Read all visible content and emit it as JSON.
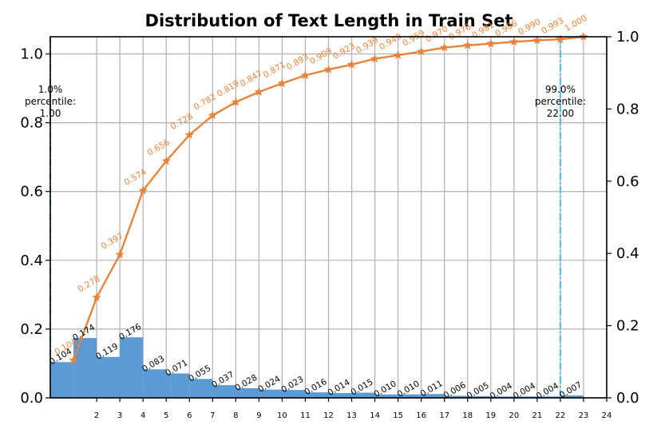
{
  "chart_data": {
    "type": "bar",
    "title": "Distribution of Text Length in Train Set",
    "xlabel": "",
    "ylabel": "",
    "y2label": "",
    "x_ticks": [
      2,
      3,
      4,
      5,
      6,
      7,
      8,
      9,
      10,
      11,
      12,
      13,
      14,
      15,
      16,
      17,
      18,
      19,
      20,
      21,
      22,
      23,
      24
    ],
    "xlim": [
      0,
      24
    ],
    "ylim": [
      0,
      1.05
    ],
    "y_ticks": [
      0.0,
      0.2,
      0.4,
      0.6,
      0.8,
      1.0
    ],
    "y_tick_labels": [
      "0.0",
      "0.2",
      "0.4",
      "0.6",
      "0.8",
      "1.0"
    ],
    "y2lim": [
      0,
      1.0
    ],
    "y2_ticks": [
      0.0,
      0.2,
      0.4,
      0.6,
      0.8,
      1.0
    ],
    "y2_tick_labels": [
      "0.0",
      "0.2",
      "0.4",
      "0.6",
      "0.8",
      "1.0"
    ],
    "grid": true,
    "bars": {
      "color": "#5b9bd5",
      "values": [
        0.104,
        0.174,
        0.119,
        0.176,
        0.083,
        0.071,
        0.055,
        0.037,
        0.028,
        0.024,
        0.023,
        0.016,
        0.014,
        0.015,
        0.01,
        0.01,
        0.011,
        0.006,
        0.005,
        0.004,
        0.004,
        0.004,
        0.007
      ],
      "labels": [
        "0.104",
        "0.174",
        "0.119",
        "0.176",
        "0.083",
        "0.071",
        "0.055",
        "0.037",
        "0.028",
        "0.024",
        "0.023",
        "0.016",
        "0.014",
        "0.015",
        "0.010",
        "0.010",
        "0.011",
        "0.006",
        "0.005",
        "0.004",
        "0.004",
        "0.004",
        "0.007"
      ]
    },
    "cumulative": {
      "color": "#e8833a",
      "marker": "star",
      "x": [
        1,
        2,
        3,
        4,
        5,
        6,
        7,
        8,
        9,
        10,
        11,
        12,
        13,
        14,
        15,
        16,
        17,
        18,
        19,
        20,
        21,
        22,
        23
      ],
      "values": [
        0.104,
        0.278,
        0.397,
        0.574,
        0.656,
        0.728,
        0.782,
        0.819,
        0.847,
        0.871,
        0.893,
        0.909,
        0.923,
        0.939,
        0.949,
        0.959,
        0.97,
        0.976,
        0.981,
        0.986,
        0.99,
        0.993,
        1.0
      ],
      "labels": [
        "0.104",
        "0.278",
        "0.397",
        "0.574",
        "0.656",
        "0.728",
        "0.782",
        "0.819",
        "0.847",
        "0.871",
        "0.893",
        "0.909",
        "0.923",
        "0.939",
        "0.949",
        "0.959",
        "0.970",
        "0.976",
        "0.981",
        "0.986",
        "0.990",
        "0.993",
        "1.000"
      ]
    },
    "percentile_lines": [
      {
        "x": 0,
        "color": "#4fc3f7",
        "label": [
          "1.0%",
          "percentile:",
          "1.00"
        ]
      },
      {
        "x": 22,
        "color": "#4fc3f7",
        "label": [
          "99.0%",
          "percentile:",
          "22.00"
        ]
      }
    ]
  }
}
